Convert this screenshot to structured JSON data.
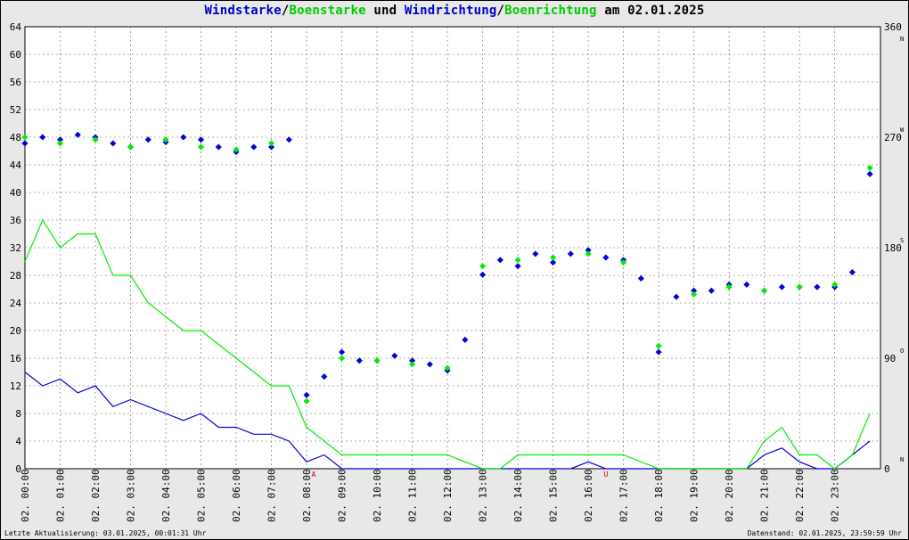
{
  "title": {
    "part1": "Windstarke",
    "sep1": "/",
    "part2": "Boenstarke",
    "mid": " und ",
    "part3": "Windrichtung",
    "sep2": "/",
    "part4": "Boenrichtung",
    "end": " am 02.01.2025"
  },
  "footer": {
    "left": "Letzte Aktualisierung: 03.01.2025, 00:01:31 Uhr",
    "right": "Datenstand: 02.01.2025, 23:59:59 Uhr"
  },
  "colors": {
    "wind": "#0000dd",
    "gust": "#00ee00",
    "background": "#e8e8e8",
    "grid": "#666666",
    "marker": "#cc0000"
  },
  "chart_data": {
    "type": "line",
    "series": [
      {
        "name": "Windstarke",
        "color": "#0000dd",
        "kind": "speed-line",
        "x": [
          0,
          0.5,
          1,
          1.5,
          2,
          2.5,
          3,
          3.5,
          4,
          4.5,
          5,
          5.5,
          6,
          6.5,
          7,
          7.5,
          8,
          8.5,
          9,
          9.5,
          10,
          11,
          12,
          13,
          13.5,
          14,
          14.5,
          15,
          15.5,
          16,
          16.5,
          17,
          18,
          19,
          20,
          20.5,
          21,
          21.5,
          22,
          22.5,
          23,
          23.5,
          24
        ],
        "y": [
          14,
          12,
          13,
          11,
          12,
          9,
          10,
          9,
          8,
          7,
          8,
          6,
          6,
          5,
          5,
          4,
          1,
          2,
          0,
          0,
          0,
          0,
          0,
          0,
          0,
          0,
          0,
          0,
          0,
          1,
          0,
          0,
          0,
          0,
          0,
          0,
          2,
          3,
          1,
          0,
          0,
          2,
          4
        ]
      },
      {
        "name": "Boenstarke",
        "color": "#00ee00",
        "kind": "speed-line",
        "x": [
          0,
          0.5,
          1,
          1.5,
          2,
          2.5,
          3,
          3.5,
          4,
          4.5,
          5,
          5.5,
          6,
          6.5,
          7,
          7.5,
          8,
          8.5,
          9,
          9.5,
          10,
          11,
          12,
          13,
          13.5,
          14,
          14.5,
          15,
          15.5,
          16,
          16.5,
          17,
          18,
          19,
          20,
          20.5,
          21,
          21.5,
          22,
          22.5,
          23,
          23.5,
          24
        ],
        "y": [
          30,
          36,
          32,
          34,
          34,
          28,
          28,
          24,
          22,
          20,
          20,
          18,
          16,
          14,
          12,
          12,
          6,
          4,
          2,
          2,
          2,
          2,
          2,
          0,
          0,
          2,
          2,
          2,
          2,
          2,
          2,
          2,
          0,
          0,
          0,
          0,
          4,
          6,
          2,
          2,
          0,
          2,
          8
        ]
      },
      {
        "name": "Windrichtung",
        "color": "#0000dd",
        "kind": "direction-points",
        "x": [
          0,
          0.5,
          1,
          1.5,
          2,
          2.5,
          3,
          3.5,
          4,
          4.5,
          5,
          5.5,
          6,
          6.5,
          7,
          7.5,
          8,
          8.5,
          9,
          9.5,
          10,
          10.5,
          11,
          11.5,
          12,
          12.5,
          13,
          13.5,
          14,
          14.5,
          15,
          15.5,
          16,
          16.5,
          17,
          17.5,
          18,
          18.5,
          19,
          19.5,
          20,
          20.5,
          21,
          21.5,
          22,
          22.5,
          23,
          23.5,
          24
        ],
        "y": [
          265,
          270,
          268,
          272,
          270,
          265,
          262,
          268,
          266,
          270,
          268,
          262,
          258,
          262,
          262,
          268,
          60,
          75,
          95,
          88,
          88,
          92,
          88,
          85,
          80,
          105,
          158,
          170,
          165,
          175,
          168,
          175,
          178,
          172,
          170,
          155,
          95,
          140,
          145,
          145,
          150,
          150,
          145,
          148,
          148,
          148,
          148,
          160,
          240
        ]
      },
      {
        "name": "Boenrichtung",
        "color": "#00ee00",
        "kind": "direction-points",
        "x": [
          0,
          1,
          2,
          3,
          4,
          5,
          6,
          7,
          8,
          9,
          10,
          11,
          12,
          13,
          14,
          15,
          16,
          17,
          18,
          19,
          20,
          21,
          22,
          23,
          24
        ],
        "y": [
          270,
          265,
          268,
          262,
          268,
          262,
          260,
          265,
          55,
          90,
          88,
          85,
          82,
          165,
          170,
          172,
          175,
          168,
          100,
          142,
          148,
          145,
          148,
          150,
          245
        ]
      }
    ],
    "x_ticks": [
      "02. 00:00",
      "02. 01:00",
      "02. 02:00",
      "02. 03:00",
      "02. 04:00",
      "02. 05:00",
      "02. 06:00",
      "02. 07:00",
      "02. 08:00",
      "02. 09:00",
      "02. 10:00",
      "02. 11:00",
      "02. 12:00",
      "02. 13:00",
      "02. 14:00",
      "02. 15:00",
      "02. 16:00",
      "02. 17:00",
      "02. 18:00",
      "02. 19:00",
      "02. 20:00",
      "02. 21:00",
      "02. 22:00",
      "02. 23:00"
    ],
    "y_left_ticks": [
      "0",
      "4",
      "8",
      "12",
      "16",
      "20",
      "24",
      "28",
      "32",
      "36",
      "40",
      "44",
      "48",
      "52",
      "56",
      "60",
      "64"
    ],
    "y_right_ticks": [
      "0",
      "90",
      "180",
      "270",
      "360"
    ],
    "y_right_dirs": [
      "N",
      "O",
      "S",
      "W",
      "N"
    ],
    "x_markers": [
      {
        "x": 8.2,
        "label": "A"
      },
      {
        "x": 16.5,
        "label": "U"
      }
    ],
    "ylim": [
      0,
      64
    ],
    "y2lim": [
      0,
      360
    ],
    "xlim": [
      0,
      24.3
    ],
    "grid": true
  }
}
